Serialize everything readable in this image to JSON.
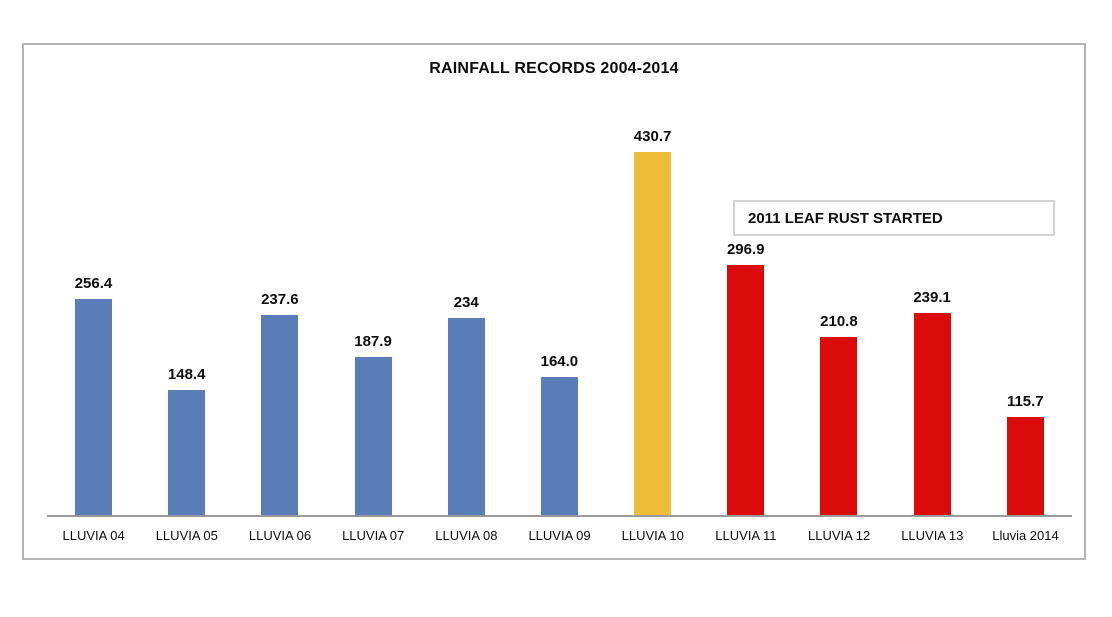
{
  "page": {
    "background": "#ffffff"
  },
  "chart_data": {
    "type": "bar",
    "title": "RAINFALL RECORDS 2004-2014",
    "categories": [
      "LLUVIA 04",
      "LLUVIA 05",
      "LLUVIA 06",
      "LLUVIA 07",
      "LLUVIA 08",
      "LLUVIA 09",
      "LLUVIA 10",
      "LLUVIA 11",
      "LLUVIA 12",
      "LLUVIA 13",
      "Lluvia 2014"
    ],
    "values": [
      256.4,
      148.4,
      237.6,
      187.9,
      234,
      164.0,
      430.7,
      296.9,
      210.8,
      239.1,
      115.7
    ],
    "value_labels": [
      "256.4",
      "148.4",
      "237.6",
      "187.9",
      "234",
      "164.0",
      "430.7",
      "296.9",
      "210.8",
      "239.1",
      "115.7"
    ],
    "bar_colors": [
      "#5a7db8",
      "#5a7db8",
      "#5a7db8",
      "#5a7db8",
      "#5a7db8",
      "#5a7db8",
      "#eebe3a",
      "#dc0b0b",
      "#dc0b0b",
      "#dc0b0b",
      "#dc0b0b"
    ],
    "annotation": {
      "text": "2011 LEAF RUST STARTED"
    },
    "xlabel": "",
    "ylabel": "",
    "ylim": [
      0,
      440
    ],
    "y_axis_visible": false,
    "grid": false,
    "legend": null,
    "colors": {
      "series_blue": "#5a7db8",
      "series_gold": "#eebe3a",
      "series_red": "#dc0b0b",
      "axis_line": "#9a9a9a",
      "frame_border": "#b4b4b4",
      "annotation_border": "#d2d2d2",
      "text": "#0d0d0d"
    }
  }
}
